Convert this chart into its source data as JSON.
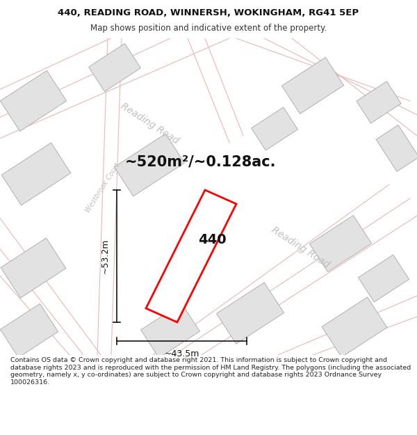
{
  "title": "440, READING ROAD, WINNERSH, WOKINGHAM, RG41 5EP",
  "subtitle": "Map shows position and indicative extent of the property.",
  "footer": "Contains OS data © Crown copyright and database right 2021. This information is subject to Crown copyright and database rights 2023 and is reproduced with the permission of HM Land Registry. The polygons (including the associated geometry, namely x, y co-ordinates) are subject to Crown copyright and database rights 2023 Ordnance Survey 100026316.",
  "map_bg": "#ffffff",
  "highlight_color": "#ff0000",
  "highlight_label": "440",
  "area_text": "~520m²/~0.128ac.",
  "width_text": "~43.5m",
  "height_text": "~53.2m",
  "reading_road_1_label": "Reading Road",
  "reading_road_2_label": "Reading Road",
  "westbrook_court_label": "Westbrook Court",
  "block_color": "#e2e2e2",
  "block_border": "#b0b0b0",
  "road_outline_color": "#e8b8b8",
  "road_label_color": "#c0c0c0",
  "dim_color": "#111111",
  "title_fontsize": 9.5,
  "subtitle_fontsize": 8.5,
  "footer_fontsize": 6.8,
  "area_fontsize": 15,
  "label_fontsize": 14,
  "dim_fontsize": 9
}
